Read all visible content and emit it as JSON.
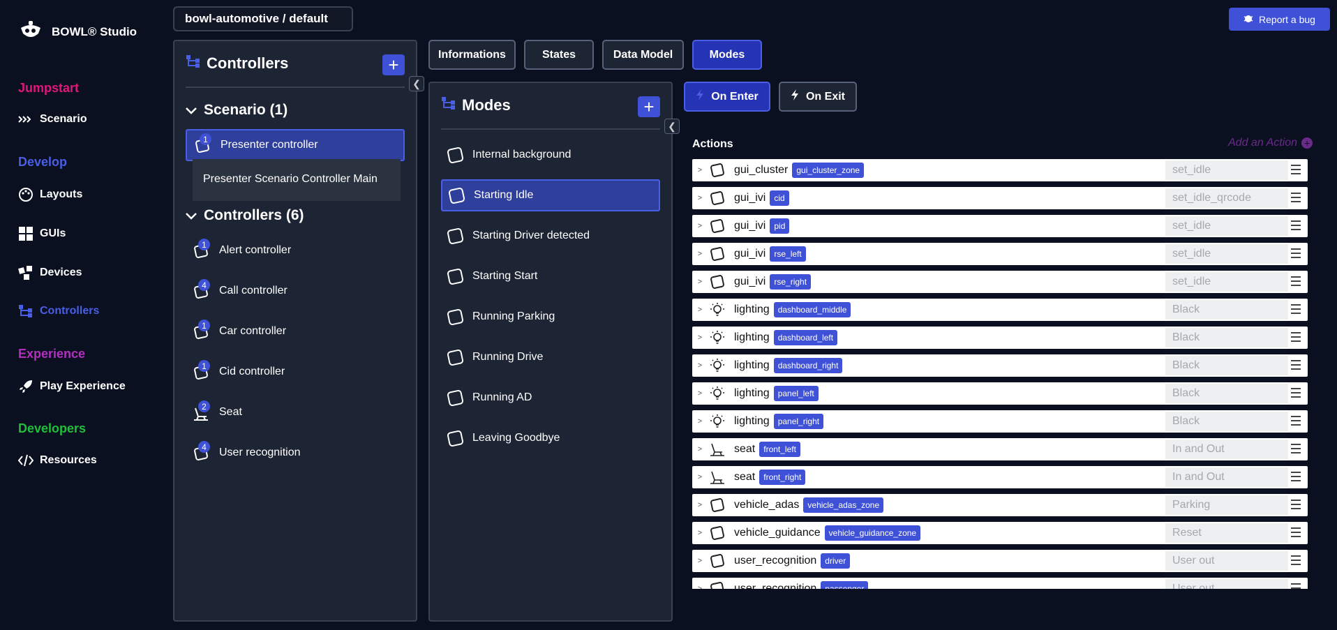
{
  "brand": {
    "name": "BOWL® Studio"
  },
  "sidebar": {
    "sections": [
      {
        "title": "Jumpstart",
        "color": "#e0177a",
        "items": [
          {
            "label": "Scenario",
            "icon": "scenario-arrows-icon"
          }
        ]
      },
      {
        "title": "Develop",
        "color": "#4a5ee6",
        "items": [
          {
            "label": "Layouts",
            "icon": "palette-icon"
          },
          {
            "label": "GUIs",
            "icon": "grid-icon"
          },
          {
            "label": "Devices",
            "icon": "devices-icon"
          },
          {
            "label": "Controllers",
            "icon": "controllers-icon",
            "active": true
          }
        ]
      },
      {
        "title": "Experience",
        "color": "#b32fc0",
        "items": [
          {
            "label": "Play Experience",
            "icon": "rocket-icon"
          }
        ]
      },
      {
        "title": "Developers",
        "color": "#1fbf3a",
        "items": [
          {
            "label": "Resources",
            "icon": "code-icon"
          }
        ]
      }
    ]
  },
  "project": {
    "label": "bowl-automotive / default"
  },
  "report_bug": {
    "label": "Report a bug"
  },
  "controllers_panel": {
    "title": "Controllers",
    "scenario_group": {
      "title": "Scenario (1)"
    },
    "scenario_items": [
      {
        "label": "Presenter controller",
        "count": "1",
        "active": true
      }
    ],
    "scenario_sub": "Presenter Scenario Controller Main",
    "controllers_group": {
      "title": "Controllers (6)"
    },
    "controllers_items": [
      {
        "label": "Alert controller",
        "count": "1"
      },
      {
        "label": "Call controller",
        "count": "4"
      },
      {
        "label": "Car controller",
        "count": "1"
      },
      {
        "label": "Cid controller",
        "count": "1"
      },
      {
        "label": "Seat",
        "count": "2"
      },
      {
        "label": "User recognition",
        "count": "4"
      }
    ]
  },
  "tabs": [
    {
      "label": "Informations"
    },
    {
      "label": "States"
    },
    {
      "label": "Data Model"
    },
    {
      "label": "Modes",
      "active": true
    }
  ],
  "modes_panel": {
    "title": "Modes",
    "items": [
      {
        "label": "Internal background"
      },
      {
        "label": "Starting Idle",
        "active": true
      },
      {
        "label": "Starting Driver detected"
      },
      {
        "label": "Starting Start"
      },
      {
        "label": "Running Parking"
      },
      {
        "label": "Running Drive"
      },
      {
        "label": "Running AD"
      },
      {
        "label": "Leaving Goodbye"
      }
    ]
  },
  "subtabs": [
    {
      "label": "On Enter",
      "active": true
    },
    {
      "label": "On Exit"
    }
  ],
  "actions": {
    "title": "Actions",
    "add_label": "Add an Action",
    "rows": [
      {
        "name": "gui_cluster",
        "tag": "gui_cluster_zone",
        "value": "set_idle",
        "icon": "square"
      },
      {
        "name": "gui_ivi",
        "tag": "cid",
        "value": "set_idle_qrcode",
        "icon": "square"
      },
      {
        "name": "gui_ivi",
        "tag": "pid",
        "value": "set_idle",
        "icon": "square"
      },
      {
        "name": "gui_ivi",
        "tag": "rse_left",
        "value": "set_idle",
        "icon": "square"
      },
      {
        "name": "gui_ivi",
        "tag": "rse_right",
        "value": "set_idle",
        "icon": "square"
      },
      {
        "name": "lighting",
        "tag": "dashboard_middle",
        "value": "Black",
        "icon": "bulb"
      },
      {
        "name": "lighting",
        "tag": "dashboard_left",
        "value": "Black",
        "icon": "bulb"
      },
      {
        "name": "lighting",
        "tag": "dashboard_right",
        "value": "Black",
        "icon": "bulb"
      },
      {
        "name": "lighting",
        "tag": "panel_left",
        "value": "Black",
        "icon": "bulb"
      },
      {
        "name": "lighting",
        "tag": "panel_right",
        "value": "Black",
        "icon": "bulb"
      },
      {
        "name": "seat",
        "tag": "front_left",
        "value": "In and Out",
        "icon": "seat"
      },
      {
        "name": "seat",
        "tag": "front_right",
        "value": "In and Out",
        "icon": "seat"
      },
      {
        "name": "vehicle_adas",
        "tag": "vehicle_adas_zone",
        "value": "Parking",
        "icon": "square"
      },
      {
        "name": "vehicle_guidance",
        "tag": "vehicle_guidance_zone",
        "value": "Reset",
        "icon": "square"
      },
      {
        "name": "user_recognition",
        "tag": "driver",
        "value": "User out",
        "icon": "square"
      },
      {
        "name": "user_recognition",
        "tag": "passenger",
        "value": "User out",
        "icon": "square"
      }
    ]
  }
}
